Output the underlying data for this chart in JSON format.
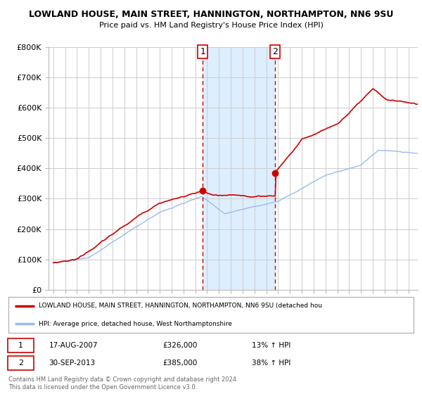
{
  "title": "LOWLAND HOUSE, MAIN STREET, HANNINGTON, NORTHAMPTON, NN6 9SU",
  "subtitle": "Price paid vs. HM Land Registry's House Price Index (HPI)",
  "ylim": [
    0,
    800000
  ],
  "yticks": [
    0,
    100000,
    200000,
    300000,
    400000,
    500000,
    600000,
    700000,
    800000
  ],
  "ytick_labels": [
    "£0",
    "£100K",
    "£200K",
    "£300K",
    "£400K",
    "£500K",
    "£600K",
    "£700K",
    "£800K"
  ],
  "xlim_start": 1994.6,
  "xlim_end": 2025.8,
  "background_color": "#ffffff",
  "plot_bg_color": "#ffffff",
  "grid_color": "#cccccc",
  "shaded_region": [
    2007.625,
    2013.75
  ],
  "shaded_color": "#ddeeff",
  "sale1_x": 2007.625,
  "sale1_y": 326000,
  "sale2_x": 2013.75,
  "sale2_y": 385000,
  "red_line_color": "#cc0000",
  "blue_line_color": "#99bbee",
  "marker_color": "#cc0000",
  "legend_label_red": "LOWLAND HOUSE, MAIN STREET, HANNINGTON, NORTHAMPTON, NN6 9SU (detached hou",
  "legend_label_blue": "HPI: Average price, detached house, West Northamptonshire",
  "annotation1_date": "17-AUG-2007",
  "annotation1_price": "£326,000",
  "annotation1_hpi": "13% ↑ HPI",
  "annotation2_date": "30-SEP-2013",
  "annotation2_price": "£385,000",
  "annotation2_hpi": "38% ↑ HPI",
  "footer1": "Contains HM Land Registry data © Crown copyright and database right 2024.",
  "footer2": "This data is licensed under the Open Government Licence v3.0."
}
